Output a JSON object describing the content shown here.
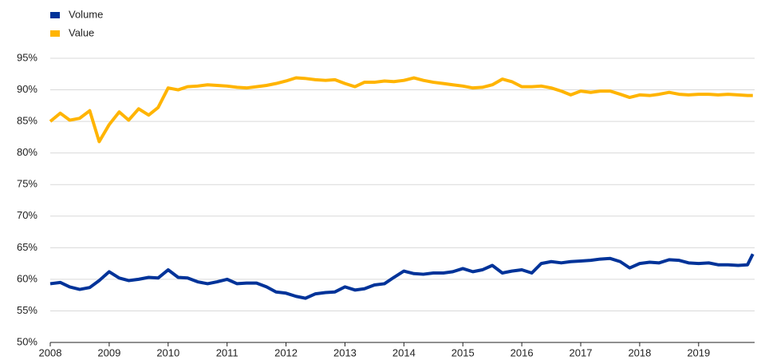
{
  "chart_data": {
    "type": "line",
    "x": [
      2008,
      2008.17,
      2008.33,
      2008.5,
      2008.67,
      2008.83,
      2009,
      2009.17,
      2009.33,
      2009.5,
      2009.67,
      2009.83,
      2010,
      2010.17,
      2010.33,
      2010.5,
      2010.67,
      2010.83,
      2011,
      2011.17,
      2011.33,
      2011.5,
      2011.67,
      2011.83,
      2012,
      2012.17,
      2012.33,
      2012.5,
      2012.67,
      2012.83,
      2013,
      2013.17,
      2013.33,
      2013.5,
      2013.67,
      2013.83,
      2014,
      2014.17,
      2014.33,
      2014.5,
      2014.67,
      2014.83,
      2015,
      2015.17,
      2015.33,
      2015.5,
      2015.67,
      2015.83,
      2016,
      2016.17,
      2016.33,
      2016.5,
      2016.67,
      2016.83,
      2017,
      2017.17,
      2017.33,
      2017.5,
      2017.67,
      2017.83,
      2018,
      2018.17,
      2018.33,
      2018.5,
      2018.67,
      2018.83,
      2019,
      2019.17,
      2019.33,
      2019.5,
      2019.67,
      2019.83,
      2019.92
    ],
    "series": [
      {
        "name": "Volume",
        "color": "#003399",
        "values": [
          59.3,
          59.5,
          58.8,
          58.4,
          58.7,
          59.8,
          61.2,
          60.2,
          59.8,
          60.0,
          60.3,
          60.2,
          61.5,
          60.3,
          60.2,
          59.6,
          59.3,
          59.6,
          60.0,
          59.3,
          59.4,
          59.4,
          58.8,
          58.0,
          57.8,
          57.3,
          57.0,
          57.7,
          57.9,
          58.0,
          58.8,
          58.3,
          58.5,
          59.1,
          59.3,
          60.3,
          61.3,
          60.9,
          60.8,
          61.0,
          61.0,
          61.2,
          61.7,
          61.2,
          61.5,
          62.2,
          61.0,
          61.3,
          61.5,
          61.0,
          62.5,
          62.8,
          62.6,
          62.8,
          62.9,
          63.0,
          63.2,
          63.3,
          62.8,
          61.8,
          62.5,
          62.7,
          62.6,
          63.1,
          63.0,
          62.6,
          62.5,
          62.6,
          62.3,
          62.3,
          62.2,
          62.3,
          64.0
        ]
      },
      {
        "name": "Value",
        "color": "#ffb400",
        "values": [
          85.0,
          86.3,
          85.2,
          85.5,
          86.7,
          81.8,
          84.5,
          86.5,
          85.2,
          87.0,
          86.0,
          87.2,
          90.3,
          90.0,
          90.5,
          90.6,
          90.8,
          90.7,
          90.6,
          90.4,
          90.3,
          90.5,
          90.7,
          91.0,
          91.4,
          91.9,
          91.8,
          91.6,
          91.5,
          91.6,
          91.0,
          90.5,
          91.2,
          91.2,
          91.4,
          91.3,
          91.5,
          91.9,
          91.5,
          91.2,
          91.0,
          90.8,
          90.6,
          90.3,
          90.4,
          90.8,
          91.7,
          91.3,
          90.5,
          90.5,
          90.6,
          90.3,
          89.8,
          89.2,
          89.8,
          89.6,
          89.8,
          89.8,
          89.3,
          88.8,
          89.2,
          89.1,
          89.3,
          89.6,
          89.3,
          89.2,
          89.3,
          89.3,
          89.2,
          89.3,
          89.2,
          89.1,
          89.1
        ]
      }
    ],
    "xlim": [
      2008,
      2019.95
    ],
    "xticks": [
      2008,
      2009,
      2010,
      2011,
      2012,
      2013,
      2014,
      2015,
      2016,
      2017,
      2018,
      2019
    ],
    "ylim": [
      50,
      95
    ],
    "yticks": [
      {
        "value": 50,
        "label": "50%"
      },
      {
        "value": 55,
        "label": "55%"
      },
      {
        "value": 60,
        "label": "60%"
      },
      {
        "value": 65,
        "label": "65%"
      },
      {
        "value": 70,
        "label": "70%"
      },
      {
        "value": 75,
        "label": "75%"
      },
      {
        "value": 80,
        "label": "80%"
      },
      {
        "value": 85,
        "label": "85%"
      },
      {
        "value": 90,
        "label": "90%"
      },
      {
        "value": 95,
        "label": "95%"
      }
    ],
    "grid": true,
    "legend": "top-left"
  }
}
